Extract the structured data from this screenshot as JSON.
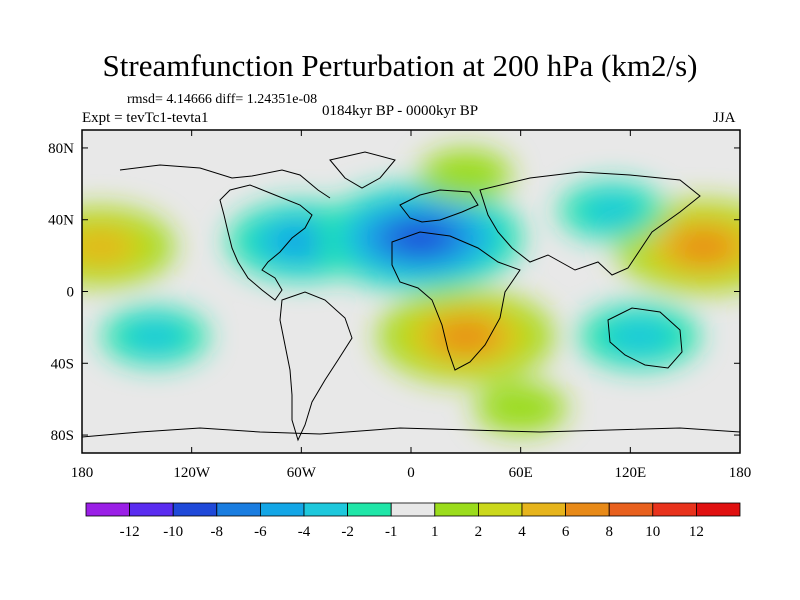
{
  "chart_data": {
    "type": "heatmap",
    "title": "Streamfunction Perturbation at 200 hPa (km2/s)",
    "stats_line": "rmsd= 4.14666 diff= 1.24351e-08",
    "period_label": "0184kyr BP - 0000kyr BP",
    "experiment_label": "Expt = tevTc1-tevta1",
    "season_label": "JJA",
    "x_range": [
      -180,
      180
    ],
    "y_range": [
      -90,
      90
    ],
    "x_ticks": [
      {
        "value": -180,
        "label": "180"
      },
      {
        "value": -120,
        "label": "120W"
      },
      {
        "value": -60,
        "label": "60W"
      },
      {
        "value": 0,
        "label": "0"
      },
      {
        "value": 60,
        "label": "60E"
      },
      {
        "value": 120,
        "label": "120E"
      },
      {
        "value": 180,
        "label": "180"
      }
    ],
    "y_ticks": [
      {
        "value": 80,
        "label": "80N"
      },
      {
        "value": 40,
        "label": "40N"
      },
      {
        "value": 0,
        "label": "0"
      },
      {
        "value": -40,
        "label": "40S"
      },
      {
        "value": -80,
        "label": "80S"
      }
    ],
    "colorbar_labels": [
      "-12",
      "-10",
      "-8",
      "-6",
      "-4",
      "-2",
      "-1",
      "1",
      "2",
      "4",
      "6",
      "8",
      "10",
      "12"
    ],
    "colorbar_colors": [
      "#9a1fe6",
      "#5a2cf0",
      "#1f49d9",
      "#1a7de0",
      "#13a6e6",
      "#1ec8dc",
      "#20e6a8",
      "#e8e8e8",
      "#9bdc1c",
      "#cbd81c",
      "#e6b41c",
      "#e88a18",
      "#e8601e",
      "#e8321c",
      "#e01010"
    ],
    "features": [
      {
        "name": "north-atlantic-low",
        "lon": -60,
        "lat": 28,
        "value": -7
      },
      {
        "name": "mediterranean-low",
        "lon": 5,
        "lat": 30,
        "value": -11
      },
      {
        "name": "south-african-high",
        "lon": 30,
        "lat": -25,
        "value": 9
      },
      {
        "name": "north-pacific-high-west",
        "lon": 160,
        "lat": 25,
        "value": 9
      },
      {
        "name": "north-pacific-high-east",
        "lon": -170,
        "lat": 25,
        "value": 7
      },
      {
        "name": "australian-low",
        "lon": 125,
        "lat": -25,
        "value": -5
      },
      {
        "name": "south-pacific-low",
        "lon": -140,
        "lat": -25,
        "value": -4
      },
      {
        "name": "east-asia-low",
        "lon": 110,
        "lat": 45,
        "value": -4
      },
      {
        "name": "arctic-high",
        "lon": 30,
        "lat": 65,
        "value": 3
      },
      {
        "name": "southern-ocean-high",
        "lon": 60,
        "lat": -65,
        "value": 3
      }
    ]
  }
}
